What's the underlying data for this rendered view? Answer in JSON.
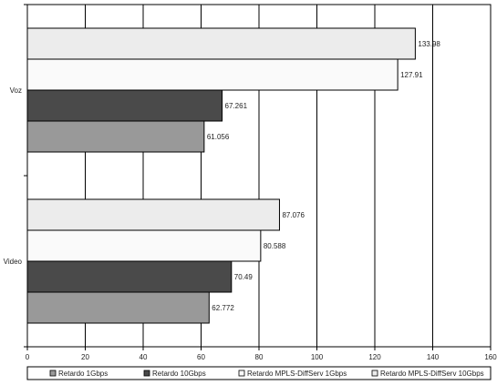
{
  "chart_data": {
    "type": "bar",
    "orientation": "horizontal",
    "categories": [
      "Voz",
      "Video"
    ],
    "series": [
      {
        "name": "Retardo 1Gbps",
        "values": [
          61.056,
          62.772
        ],
        "color": "#999999"
      },
      {
        "name": "Retardo 10Gbps",
        "values": [
          67.261,
          70.49
        ],
        "color": "#4a4a4a"
      },
      {
        "name": "Retardo MPLS-DiffServ 1Gbps",
        "values": [
          127.91,
          80.588
        ],
        "color": "#fafafa"
      },
      {
        "name": "Retardo MPLS-DiffServ 10Gbps",
        "values": [
          133.98,
          87.076
        ],
        "color": "#ececec"
      }
    ],
    "value_labels": [
      [
        "61.056",
        "62.772"
      ],
      [
        "67.261",
        "70.49"
      ],
      [
        "127.91",
        "80.588"
      ],
      [
        "133.98",
        "87.076"
      ]
    ],
    "xlim": [
      0,
      160
    ],
    "xticks": [
      0,
      20,
      40,
      60,
      80,
      100,
      120,
      140,
      160
    ],
    "grid": true,
    "legend_position": "bottom",
    "title": "",
    "xlabel": "",
    "ylabel": ""
  }
}
